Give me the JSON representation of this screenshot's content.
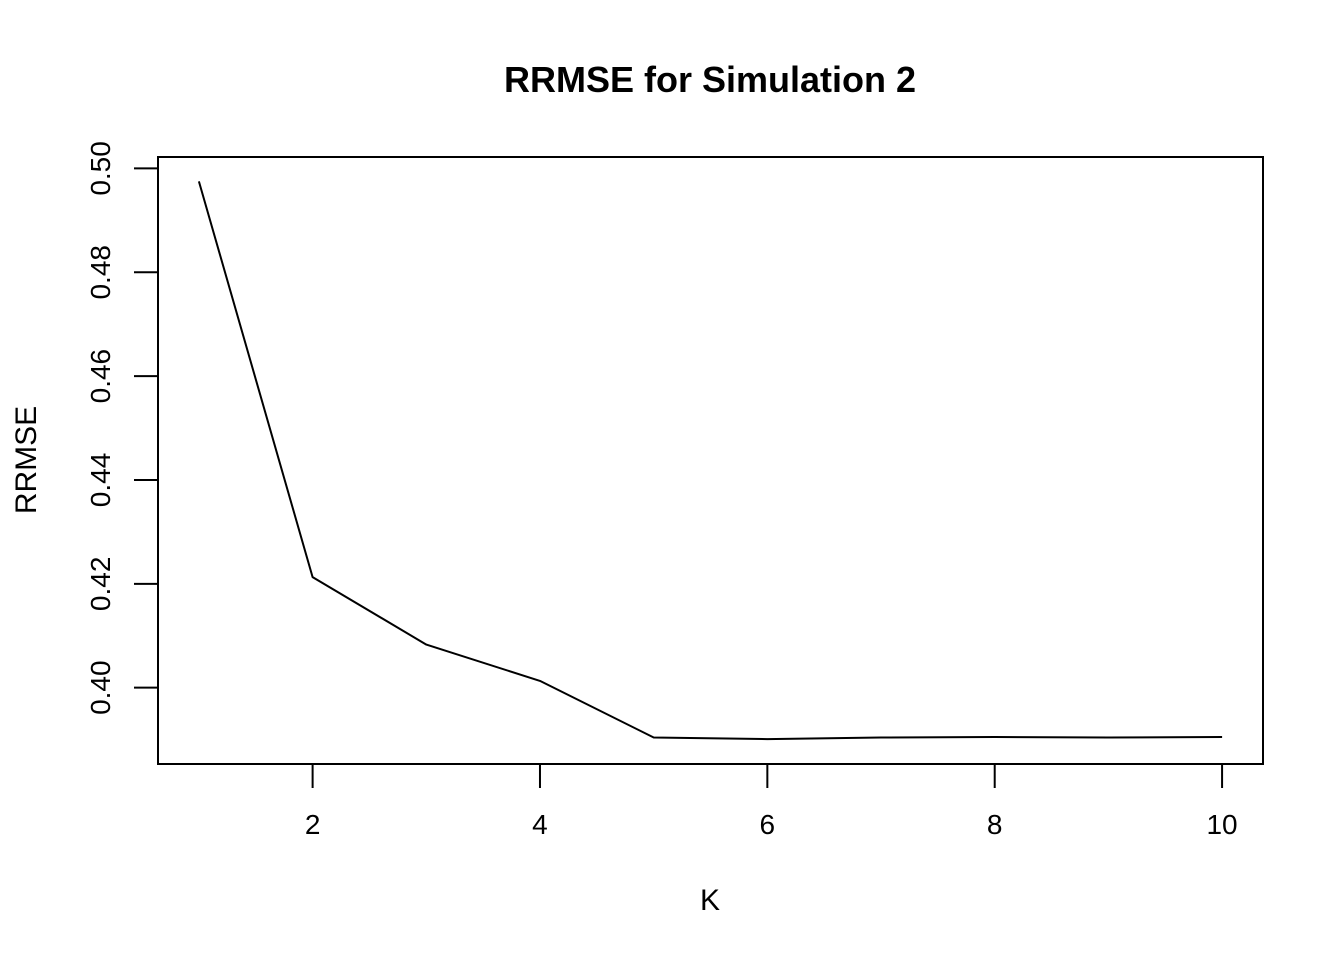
{
  "chart_data": {
    "type": "line",
    "title": "RRMSE for Simulation 2",
    "xlabel": "K",
    "ylabel": "RRMSE",
    "x": [
      1,
      2,
      3,
      4,
      5,
      6,
      7,
      8,
      9,
      10
    ],
    "series": [
      {
        "values": [
          0.4975,
          0.4213,
          0.4083,
          0.4013,
          0.3904,
          0.3901,
          0.3904,
          0.3905,
          0.3904,
          0.3905
        ]
      }
    ],
    "xticks": [
      "2",
      "4",
      "6",
      "8",
      "10"
    ],
    "yticks": [
      "0.40",
      "0.42",
      "0.44",
      "0.46",
      "0.48",
      "0.50"
    ],
    "xlim": [
      0.64,
      10.36
    ],
    "ylim": [
      0.3853,
      0.5022
    ],
    "grid": false,
    "line_color": "#000000"
  }
}
